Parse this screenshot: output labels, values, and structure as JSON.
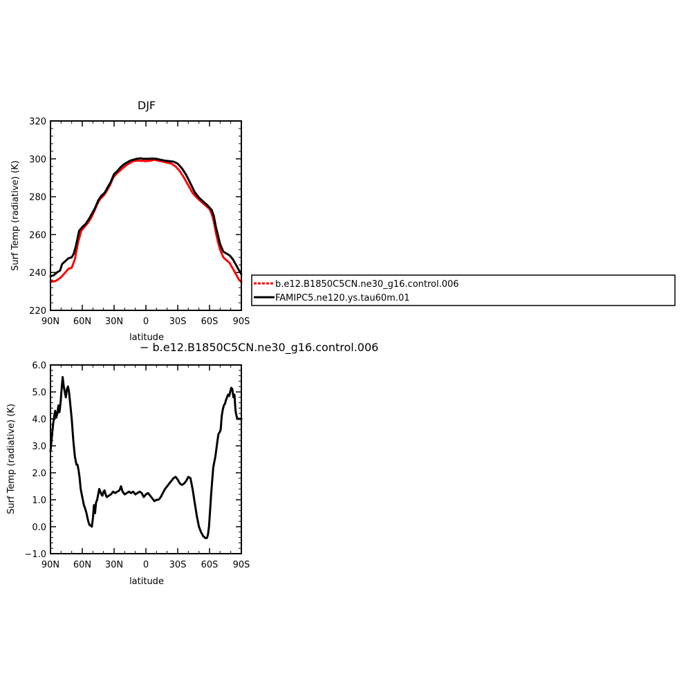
{
  "chart_data": [
    {
      "type": "line",
      "title": "DJF",
      "xlabel": "latitude",
      "ylabel": "Surf Temp (radiative) (K)",
      "xlim": [
        -90,
        90
      ],
      "ylim": [
        220,
        320
      ],
      "x_ticks": [
        -90,
        -60,
        -30,
        0,
        30,
        60,
        90
      ],
      "x_tick_labels": [
        "90N",
        "60N",
        "30N",
        "0",
        "30S",
        "60S",
        "90S"
      ],
      "y_ticks": [
        220,
        240,
        260,
        280,
        300,
        320
      ],
      "y_tick_labels": [
        "220",
        "240",
        "260",
        "280",
        "300",
        "320"
      ],
      "legend": "right, outside plot",
      "series": [
        {
          "name": "b.e12.B1850C5CN.ne30_g16.control.006",
          "color": "#ff0000",
          "style": "dashed",
          "points": [
            [
              -90,
              235
            ],
            [
              -85,
              235.5
            ],
            [
              -80,
              237.5
            ],
            [
              -76,
              240
            ],
            [
              -73,
              242
            ],
            [
              -70,
              242.5
            ],
            [
              -67,
              247
            ],
            [
              -64,
              256
            ],
            [
              -61,
              262
            ],
            [
              -58,
              264
            ],
            [
              -55,
              266
            ],
            [
              -52,
              268.5
            ],
            [
              -49,
              272
            ],
            [
              -46,
              276
            ],
            [
              -43,
              279
            ],
            [
              -40,
              280.5
            ],
            [
              -37,
              283
            ],
            [
              -34,
              286
            ],
            [
              -31,
              290
            ],
            [
              -28,
              292
            ],
            [
              -25,
              293.5
            ],
            [
              -22,
              295
            ],
            [
              -19,
              296.5
            ],
            [
              -16,
              297.5
            ],
            [
              -13,
              298.5
            ],
            [
              -10,
              299
            ],
            [
              -7,
              299
            ],
            [
              -4,
              299
            ],
            [
              0,
              298.8
            ],
            [
              4,
              299
            ],
            [
              8,
              299.5
            ],
            [
              12,
              299
            ],
            [
              16,
              298.5
            ],
            [
              20,
              298
            ],
            [
              24,
              297.5
            ],
            [
              28,
              296
            ],
            [
              32,
              293.5
            ],
            [
              36,
              290
            ],
            [
              40,
              286
            ],
            [
              44,
              282
            ],
            [
              48,
              279.5
            ],
            [
              52,
              277.5
            ],
            [
              56,
              275.5
            ],
            [
              60,
              273.5
            ],
            [
              62,
              271
            ],
            [
              64,
              267
            ],
            [
              66,
              261
            ],
            [
              68,
              256
            ],
            [
              70,
              252
            ],
            [
              73,
              248
            ],
            [
              76,
              246.5
            ],
            [
              79,
              245
            ],
            [
              82,
              242
            ],
            [
              85,
              239
            ],
            [
              88,
              236
            ],
            [
              90,
              235
            ]
          ]
        },
        {
          "name": "FAMIPC5.ne120.ys.tau60m.01",
          "color": "#000000",
          "style": "solid",
          "points": [
            [
              -90,
              238
            ],
            [
              -87,
              238.5
            ],
            [
              -84,
              240
            ],
            [
              -81,
              241
            ],
            [
              -79,
              244.5
            ],
            [
              -76,
              246
            ],
            [
              -73,
              247.5
            ],
            [
              -70,
              248
            ],
            [
              -68,
              250
            ],
            [
              -66,
              254
            ],
            [
              -63,
              262
            ],
            [
              -60,
              264
            ],
            [
              -57,
              265.5
            ],
            [
              -54,
              268
            ],
            [
              -51,
              271
            ],
            [
              -48,
              274
            ],
            [
              -45,
              278
            ],
            [
              -42,
              280.5
            ],
            [
              -39,
              282
            ],
            [
              -36,
              285
            ],
            [
              -33,
              288
            ],
            [
              -30,
              292
            ],
            [
              -27,
              293.5
            ],
            [
              -24,
              295.5
            ],
            [
              -21,
              297
            ],
            [
              -18,
              298
            ],
            [
              -15,
              299
            ],
            [
              -12,
              299.5
            ],
            [
              -9,
              300
            ],
            [
              -5,
              300.3
            ],
            [
              -2,
              300
            ],
            [
              2,
              300
            ],
            [
              6,
              300.2
            ],
            [
              10,
              300
            ],
            [
              14,
              299.5
            ],
            [
              18,
              299
            ],
            [
              22,
              298.8
            ],
            [
              26,
              298.5
            ],
            [
              30,
              297.5
            ],
            [
              34,
              295
            ],
            [
              38,
              291.5
            ],
            [
              42,
              287
            ],
            [
              46,
              282.5
            ],
            [
              50,
              279.5
            ],
            [
              54,
              277.5
            ],
            [
              58,
              275.5
            ],
            [
              62,
              273
            ],
            [
              64,
              270
            ],
            [
              66,
              264
            ],
            [
              68,
              259.5
            ],
            [
              70,
              255
            ],
            [
              73,
              251
            ],
            [
              76,
              250
            ],
            [
              79,
              249
            ],
            [
              82,
              247
            ],
            [
              85,
              244
            ],
            [
              88,
              241
            ],
            [
              90,
              239
            ]
          ]
        }
      ]
    },
    {
      "type": "line",
      "title": "",
      "caption": "− b.e12.B1850C5CN.ne30_g16.control.006",
      "xlabel": "latitude",
      "ylabel": "Surf Temp (radiative) (K)",
      "xlim": [
        -90,
        90
      ],
      "ylim": [
        -1.0,
        6.0
      ],
      "x_ticks": [
        -90,
        -60,
        -30,
        0,
        30,
        60,
        90
      ],
      "x_tick_labels": [
        "90N",
        "60N",
        "30N",
        "0",
        "30S",
        "60S",
        "90S"
      ],
      "y_ticks": [
        -1.0,
        0.0,
        1.0,
        2.0,
        3.0,
        4.0,
        5.0,
        6.0
      ],
      "y_tick_labels": [
        "−1.0",
        "0.0",
        "1.0",
        "2.0",
        "3.0",
        "4.0",
        "5.0",
        "6.0"
      ],
      "series": [
        {
          "name": "",
          "color": "#000000",
          "style": "solid",
          "points": [
            [
              -90,
              2.8
            ],
            [
              -89,
              3.2
            ],
            [
              -87.5,
              3.8
            ],
            [
              -86.5,
              4.1
            ],
            [
              -85.5,
              4.3
            ],
            [
              -84.5,
              4.05
            ],
            [
              -83.5,
              4.2
            ],
            [
              -82.5,
              4.5
            ],
            [
              -81.5,
              4.25
            ],
            [
              -80.5,
              4.6
            ],
            [
              -79.5,
              5.1
            ],
            [
              -78.5,
              5.55
            ],
            [
              -77.5,
              5.2
            ],
            [
              -76.5,
              5.0
            ],
            [
              -75.5,
              4.8
            ],
            [
              -74.5,
              5.1
            ],
            [
              -73.5,
              5.2
            ],
            [
              -72.5,
              5.0
            ],
            [
              -71.5,
              4.6
            ],
            [
              -70,
              4.0
            ],
            [
              -68.5,
              3.2
            ],
            [
              -67,
              2.6
            ],
            [
              -65.5,
              2.3
            ],
            [
              -64.5,
              2.3
            ],
            [
              -63.5,
              2.1
            ],
            [
              -62.5,
              1.8
            ],
            [
              -61.5,
              1.4
            ],
            [
              -60.5,
              1.2
            ],
            [
              -59.5,
              1.0
            ],
            [
              -58.5,
              0.8
            ],
            [
              -57.5,
              0.7
            ],
            [
              -56,
              0.5
            ],
            [
              -55,
              0.3
            ],
            [
              -54,
              0.15
            ],
            [
              -53,
              0.05
            ],
            [
              -52,
              0.05
            ],
            [
              -51,
              0.0
            ],
            [
              -50,
              0.3
            ],
            [
              -49,
              0.8
            ],
            [
              -48,
              0.5
            ],
            [
              -47,
              0.9
            ],
            [
              -46,
              1.0
            ],
            [
              -45,
              1.2
            ],
            [
              -44,
              1.4
            ],
            [
              -43,
              1.3
            ],
            [
              -42,
              1.2
            ],
            [
              -41,
              1.15
            ],
            [
              -40,
              1.3
            ],
            [
              -39,
              1.35
            ],
            [
              -38,
              1.2
            ],
            [
              -37,
              1.1
            ],
            [
              -35,
              1.15
            ],
            [
              -33,
              1.2
            ],
            [
              -31,
              1.3
            ],
            [
              -29,
              1.25
            ],
            [
              -27,
              1.3
            ],
            [
              -25,
              1.35
            ],
            [
              -23.5,
              1.5
            ],
            [
              -22,
              1.3
            ],
            [
              -20,
              1.2
            ],
            [
              -18,
              1.25
            ],
            [
              -16,
              1.3
            ],
            [
              -14,
              1.25
            ],
            [
              -12,
              1.3
            ],
            [
              -10,
              1.2
            ],
            [
              -8,
              1.25
            ],
            [
              -6,
              1.3
            ],
            [
              -4,
              1.25
            ],
            [
              -2,
              1.1
            ],
            [
              0,
              1.2
            ],
            [
              2,
              1.25
            ],
            [
              4,
              1.15
            ],
            [
              6,
              1.05
            ],
            [
              8,
              0.95
            ],
            [
              10,
              1.0
            ],
            [
              12,
              1.0
            ],
            [
              14,
              1.1
            ],
            [
              16,
              1.25
            ],
            [
              18,
              1.4
            ],
            [
              20,
              1.5
            ],
            [
              22,
              1.6
            ],
            [
              24,
              1.7
            ],
            [
              26,
              1.8
            ],
            [
              28,
              1.85
            ],
            [
              30,
              1.75
            ],
            [
              32,
              1.6
            ],
            [
              34,
              1.55
            ],
            [
              36,
              1.6
            ],
            [
              38,
              1.7
            ],
            [
              40,
              1.85
            ],
            [
              42,
              1.8
            ],
            [
              44,
              1.4
            ],
            [
              46,
              0.9
            ],
            [
              48,
              0.4
            ],
            [
              50,
              0.0
            ],
            [
              52,
              -0.2
            ],
            [
              54,
              -0.35
            ],
            [
              56,
              -0.42
            ],
            [
              57.5,
              -0.42
            ],
            [
              58.5,
              -0.3
            ],
            [
              59.5,
              0.0
            ],
            [
              60.5,
              0.6
            ],
            [
              61.5,
              1.2
            ],
            [
              62.5,
              1.7
            ],
            [
              63.5,
              2.2
            ],
            [
              64.5,
              2.4
            ],
            [
              65.5,
              2.6
            ],
            [
              66.5,
              2.9
            ],
            [
              67.5,
              3.2
            ],
            [
              68.5,
              3.45
            ],
            [
              69.5,
              3.5
            ],
            [
              70.5,
              3.6
            ],
            [
              71.5,
              4.1
            ],
            [
              72.5,
              4.35
            ],
            [
              73.5,
              4.5
            ],
            [
              74.5,
              4.55
            ],
            [
              75.5,
              4.7
            ],
            [
              76.5,
              4.8
            ],
            [
              77.5,
              4.9
            ],
            [
              78.5,
              4.85
            ],
            [
              79.5,
              5.0
            ],
            [
              80.5,
              5.15
            ],
            [
              81.5,
              5.1
            ],
            [
              82.5,
              4.8
            ],
            [
              83.5,
              4.9
            ],
            [
              84.5,
              4.3
            ],
            [
              85.5,
              4.1
            ],
            [
              86.5,
              4.0
            ],
            [
              88,
              4.0
            ],
            [
              90,
              4.0
            ]
          ]
        }
      ]
    }
  ]
}
